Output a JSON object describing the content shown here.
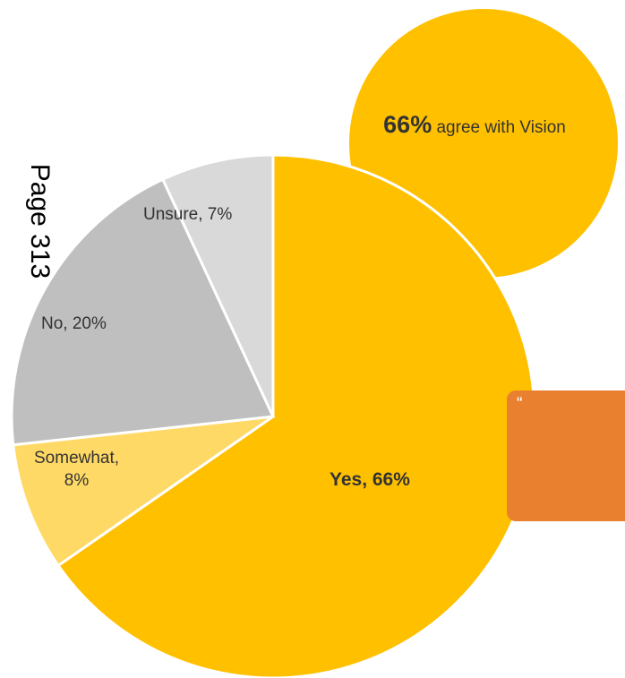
{
  "page_label": "Page 313",
  "callout": {
    "percent": "66%",
    "text": "agree with Vision",
    "color": "#FFC000"
  },
  "quote_mark": "“",
  "chart_data": {
    "type": "pie",
    "slices": [
      {
        "category": "Yes",
        "value": 66,
        "label": "Yes, 66%",
        "color": "#FFC000"
      },
      {
        "category": "Somewhat",
        "value": 8,
        "label": "Somewhat, 8%",
        "color": "#FFD966"
      },
      {
        "category": "No",
        "value": 20,
        "label": "No, 20%",
        "color": "#BFBFBF"
      },
      {
        "category": "Unsure",
        "value": 7,
        "label": "Unsure, 7%",
        "color": "#D9D9D9"
      }
    ]
  },
  "labels": {
    "yes": "Yes, 66%",
    "somewhat_line1": "Somewhat,",
    "somewhat_line2": "8%",
    "no": "No, 20%",
    "unsure": "Unsure, 7%"
  },
  "colors": {
    "accent_orange": "#E9802F"
  }
}
